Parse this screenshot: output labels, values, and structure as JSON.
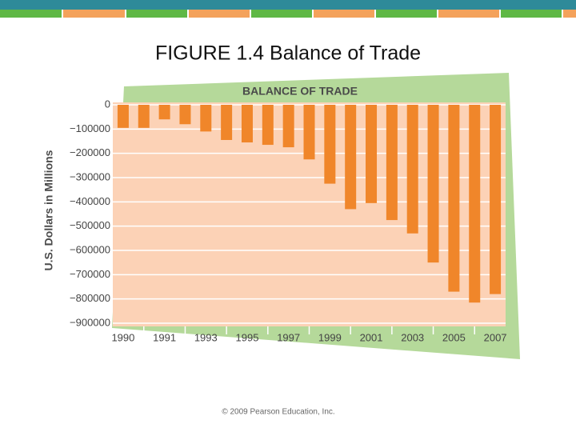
{
  "slide_title": "FIGURE 1.4  Balance of Trade",
  "footer": "© 2009 Pearson Education, Inc.",
  "chart_data": {
    "type": "bar",
    "title": "BALANCE OF TRADE",
    "y_label": "U.S. Dollars in Millions",
    "categories": [
      "1990",
      null,
      "1991",
      null,
      "1993",
      null,
      "1995",
      null,
      "1997",
      null,
      "1999",
      null,
      "2001",
      null,
      "2003",
      null,
      "2005",
      null,
      "2007"
    ],
    "values": [
      -95000,
      -95000,
      -60000,
      -80000,
      -110000,
      -145000,
      -155000,
      -165000,
      -175000,
      -225000,
      -325000,
      -430000,
      -405000,
      -475000,
      -530000,
      -650000,
      -770000,
      -815000,
      -780000
    ],
    "color": "#f0862a",
    "ylim": [
      -900000,
      0
    ],
    "yticks": [
      0,
      {
        "value": -100000,
        "label": "−100000"
      },
      {
        "value": -200000,
        "label": "−200000"
      },
      {
        "value": -300000,
        "label": "−300000"
      },
      {
        "value": -400000,
        "label": "−400000"
      },
      {
        "value": -500000,
        "label": "−500000"
      },
      {
        "value": -600000,
        "label": "−600000"
      },
      {
        "value": -700000,
        "label": "−700000"
      },
      {
        "value": -800000,
        "label": "−800000"
      },
      {
        "value": -900000,
        "label": "−900000"
      }
    ],
    "grid": true
  }
}
